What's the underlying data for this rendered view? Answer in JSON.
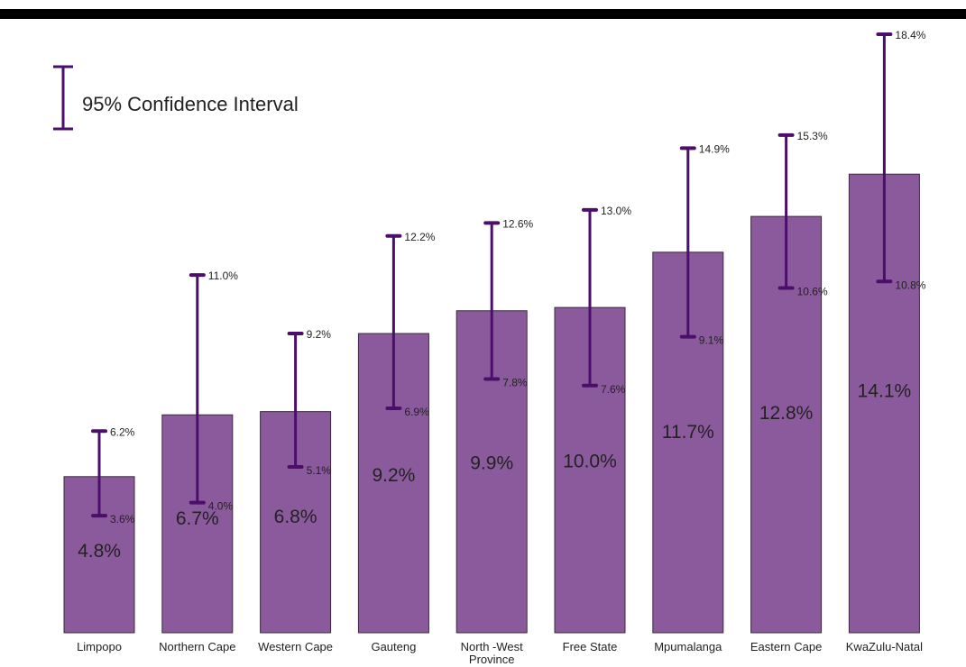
{
  "chart_data": {
    "type": "bar",
    "title": "",
    "xlabel": "",
    "ylabel": "",
    "categories": [
      "Limpopo",
      "Northern Cape",
      "Western Cape",
      "Gauteng",
      "North -West Province",
      "Free State",
      "Mpumalanga",
      "Eastern Cape",
      "KwaZulu-Natal"
    ],
    "category_label_lines": [
      [
        "Limpopo"
      ],
      [
        "Northern Cape"
      ],
      [
        "Western Cape"
      ],
      [
        "Gauteng"
      ],
      [
        "North -West",
        "Province"
      ],
      [
        "Free State"
      ],
      [
        "Mpumalanga"
      ],
      [
        "Eastern Cape"
      ],
      [
        "KwaZulu-Natal"
      ]
    ],
    "values": [
      4.8,
      6.7,
      6.8,
      9.2,
      9.9,
      10.0,
      11.7,
      12.8,
      14.1
    ],
    "value_labels": [
      "4.8%",
      "6.7%",
      "6.8%",
      "9.2%",
      "9.9%",
      "10.0%",
      "11.7%",
      "12.8%",
      "14.1%"
    ],
    "ci_lower": [
      3.6,
      4.0,
      5.1,
      6.9,
      7.8,
      7.6,
      9.1,
      10.6,
      10.8
    ],
    "ci_lower_labels": [
      "3.6%",
      "4.0%",
      "5.1%",
      "6.9%",
      "7.8%",
      "7.6%",
      "9.1%",
      "10.6%",
      "10.8%"
    ],
    "ci_upper": [
      6.2,
      11.0,
      9.2,
      12.2,
      12.6,
      13.0,
      14.9,
      15.3,
      18.4
    ],
    "ci_upper_labels": [
      "6.2%",
      "11.0%",
      "9.2%",
      "12.2%",
      "12.6%",
      "13.0%",
      "14.9%",
      "15.3%",
      "18.4%"
    ],
    "legend": {
      "label": "95% Confidence Interval",
      "placement": "top-left"
    },
    "ylim": [
      0,
      18.4
    ],
    "grid": false,
    "colors": {
      "bar": "#8b5a9c",
      "bar_border": "#3a2a3a",
      "error_bar": "#4b0f6b",
      "top_band": "#000000",
      "text": "#222222"
    }
  }
}
